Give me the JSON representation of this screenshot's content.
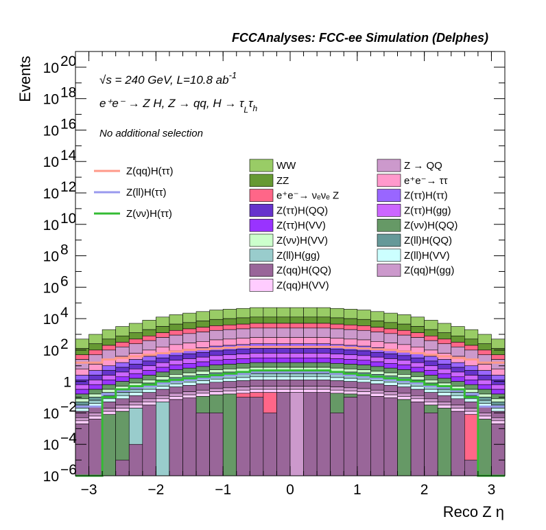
{
  "chart_data": {
    "type": "bar",
    "title": "FCCAnalyses: FCC-ee Simulation (Delphes)",
    "xlabel": "Reco Z η",
    "ylabel": "Events",
    "xlim": [
      -3.2,
      3.2
    ],
    "ylim_log10": [
      -6,
      21
    ],
    "yscale": "log",
    "x_ticks": [
      {
        "value": -3,
        "label": "−3"
      },
      {
        "value": -2,
        "label": "−2"
      },
      {
        "value": -1,
        "label": "−1"
      },
      {
        "value": 0,
        "label": "0"
      },
      {
        "value": 1,
        "label": "1"
      },
      {
        "value": 2,
        "label": "2"
      },
      {
        "value": 3,
        "label": "3"
      }
    ],
    "y_tick_exponents": [
      -6,
      -4,
      -2,
      0,
      2,
      4,
      6,
      8,
      10,
      12,
      14,
      16,
      18,
      20
    ],
    "y_tick_labels": {
      "-6": "10",
      "-4": "10",
      "-2": "10",
      "0": "1",
      "2": "10",
      "4": "10",
      "6": "10",
      "8": "10",
      "10": "10",
      "12": "10",
      "14": "10",
      "16": "10",
      "18": "10",
      "20": "10"
    },
    "y_tick_sup": {
      "-6": "−6",
      "-4": "−4",
      "-2": "−2",
      "0": "",
      "2": "2",
      "4": "4",
      "6": "6",
      "8": "8",
      "10": "10",
      "12": "12",
      "14": "14",
      "16": "16",
      "18": "18",
      "20": "20"
    },
    "annotations": {
      "line1": "√s = 240 GeV, L=10.8 ab",
      "line1_sup": "-1",
      "line2": "e⁺e⁻ → Z H, Z → qq, H → τ",
      "line2_sub1": "L",
      "line2_tau": "τ",
      "line2_sub2": "h",
      "line3": "No additional selection"
    },
    "bin_edges_start": -3.2,
    "bin_width": 0.2,
    "total_stack_log10": [
      2.7,
      3.0,
      3.3,
      3.5,
      3.7,
      3.9,
      4.1,
      4.25,
      4.35,
      4.45,
      4.55,
      4.6,
      4.65,
      4.7,
      4.7,
      4.7,
      4.7,
      4.7,
      4.7,
      4.65,
      4.6,
      4.55,
      4.45,
      4.35,
      4.25,
      4.1,
      3.9,
      3.7,
      3.5,
      3.3,
      3.0,
      2.7
    ],
    "stack_series": [
      {
        "name": "WW",
        "color": "#99cc66",
        "delta_log10": 0.6
      },
      {
        "name": "ZZ",
        "color": "#669933",
        "delta_log10": 0.4
      },
      {
        "name": "e⁺e⁻→ νₑνₑ Z",
        "color": "#ff6688",
        "delta_log10": 0.3
      },
      {
        "name": "Z → QQ",
        "color": "#cc99cc",
        "delta_log10": 0.6
      },
      {
        "name": "e⁺e⁻→ ττ",
        "color": "#ff99cc",
        "delta_log10": 0.4
      },
      {
        "name": "Z(ττ)H(ττ)",
        "color": "#9966ff",
        "delta_log10": 0.3
      },
      {
        "name": "Z(ττ)H(QQ)",
        "color": "#6633cc",
        "delta_log10": 0.3
      },
      {
        "name": "Z(ττ)H(gg)",
        "color": "#cc66ff",
        "delta_log10": 0.3
      },
      {
        "name": "Z(ττ)H(VV)",
        "color": "#9933ff",
        "delta_log10": 0.3
      },
      {
        "name": "Z(νν)H(QQ)",
        "color": "#669966",
        "delta_log10": 0.3
      },
      {
        "name": "Z(νν)H(VV)",
        "color": "#ccffcc",
        "delta_log10": 0.2
      },
      {
        "name": "Z(ll)H(QQ)",
        "color": "#669999",
        "delta_log10": 0.2
      },
      {
        "name": "Z(ll)H(gg)",
        "color": "#99cccc",
        "delta_log10": 0.2
      },
      {
        "name": "Z(ll)H(VV)",
        "color": "#ccffff",
        "delta_log10": 0.2
      },
      {
        "name": "Z(qq)H(QQ)",
        "color": "#996699",
        "delta_log10": 0.4
      },
      {
        "name": "Z(qq)H(gg)",
        "color": "#cc99cc",
        "delta_log10": 0.2
      },
      {
        "name": "Z(qq)H(VV)",
        "color": "#ffccff",
        "delta_log10": 0.2
      }
    ],
    "bottom_layers": {
      "Z(qq)H(QQ)": [
        -0.3,
        -0.3,
        -6,
        -5,
        -4,
        -1,
        -6,
        0,
        -6,
        -2,
        -2,
        -6,
        -1,
        -1,
        -2,
        0,
        -6,
        0,
        -1,
        -2,
        -1,
        -0.5,
        0,
        -1,
        -6,
        0,
        -2,
        -6,
        -6,
        -5,
        -6,
        -0.3
      ],
      "Z(νν)H(QQ)": [
        -6,
        -6,
        -1.5,
        -1.5,
        -6,
        -6,
        -6,
        -6,
        -6,
        0.5,
        0,
        -4,
        0,
        0,
        0.2,
        0.5,
        -6,
        0.5,
        -6,
        0.5,
        0.3,
        0.5,
        0,
        0.3,
        -0.5,
        0.3,
        -2,
        -4,
        -6,
        -6,
        -1.5,
        -6
      ],
      "e⁺e⁻→ νₑνₑ Z": [
        -6,
        -6,
        -6,
        -6,
        -6,
        -6,
        -6,
        -6,
        -6,
        -6,
        0,
        -6,
        -6,
        -6,
        -6,
        -6,
        -6,
        -6,
        -6,
        -6,
        -6,
        -6,
        -6,
        -6,
        -6,
        -6,
        -6,
        -6,
        0,
        -6,
        -6,
        -6
      ],
      "Z(ll)H(gg)": [
        -6,
        -6,
        -6,
        -6,
        -1.7,
        -6,
        0,
        -6,
        -6,
        -6,
        -6,
        -6,
        -6,
        -6,
        -6,
        -6,
        -6,
        -6,
        -6,
        -6,
        -6,
        -6,
        -6,
        -6,
        -6,
        -6,
        -6,
        -6,
        -6,
        -6,
        -6,
        -6
      ]
    },
    "bottom_layers_special": {
      "e⁺e⁻→ νₑνₑ Z_pink_bins": [
        6,
        7,
        12,
        13,
        14,
        15,
        22,
        23,
        29
      ],
      "Z → QQ_bin": [
        16
      ]
    },
    "line_series": [
      {
        "name": "Z(qq)H(ττ)",
        "color": "#ff9988",
        "values_log10": [
          1.2,
          1.2,
          1.4,
          1.5,
          1.6,
          1.7,
          1.8,
          1.9,
          2.0,
          2.05,
          2.1,
          2.15,
          2.2,
          2.2,
          2.2,
          2.2,
          2.2,
          2.2,
          2.2,
          2.2,
          2.15,
          2.1,
          2.05,
          2.0,
          1.9,
          1.8,
          1.7,
          1.6,
          1.5,
          1.4,
          1.2,
          1.2
        ]
      },
      {
        "name": "Z(ll)H(ττ)",
        "color": "#9999ee",
        "values_log10": [
          -1.6,
          -1.6,
          -0.8,
          -0.6,
          -0.4,
          -0.3,
          -0.1,
          0.0,
          0.1,
          0.2,
          0.3,
          0.4,
          0.5,
          0.6,
          0.6,
          0.6,
          0.6,
          0.6,
          0.6,
          0.5,
          0.4,
          0.3,
          0.2,
          0.1,
          0.0,
          -0.1,
          -0.3,
          -0.4,
          -0.6,
          -0.8,
          -1.6,
          -1.6
        ]
      },
      {
        "name": "Z(νν)H(ττ)",
        "color": "#33bb33",
        "values_log10": [
          -6,
          -6,
          -1.0,
          -0.5,
          -0.3,
          -0.2,
          0.0,
          0.1,
          0.2,
          0.3,
          0.4,
          0.5,
          0.6,
          0.7,
          0.7,
          0.7,
          0.7,
          0.7,
          0.7,
          0.6,
          0.5,
          0.4,
          0.3,
          0.2,
          0.1,
          0.0,
          -0.2,
          -0.3,
          -0.5,
          -1.0,
          -6,
          -6
        ]
      }
    ],
    "legend_lines": [
      {
        "label": "Z(qq)H(ττ)",
        "color": "#ff9988"
      },
      {
        "label": "Z(ll)H(ττ)",
        "color": "#9999ee"
      },
      {
        "label": "Z(νν)H(ττ)",
        "color": "#33bb33"
      }
    ],
    "legend_boxes_col1": [
      {
        "label": "WW",
        "color": "#99cc66"
      },
      {
        "label": "ZZ",
        "color": "#669933"
      },
      {
        "label": "e⁺e⁻→ νₑνₑ Z",
        "color": "#ff6688"
      },
      {
        "label": "Z(ττ)H(QQ)",
        "color": "#6633cc"
      },
      {
        "label": "Z(ττ)H(VV)",
        "color": "#9933ff"
      },
      {
        "label": "Z(νν)H(VV)",
        "color": "#ccffcc"
      },
      {
        "label": "Z(ll)H(gg)",
        "color": "#99cccc"
      },
      {
        "label": "Z(qq)H(QQ)",
        "color": "#996699"
      },
      {
        "label": "Z(qq)H(VV)",
        "color": "#ffccff"
      }
    ],
    "legend_boxes_col2": [
      {
        "label": "Z → QQ",
        "color": "#cc99cc"
      },
      {
        "label": "e⁺e⁻→ ττ",
        "color": "#ff99cc"
      },
      {
        "label": "Z(ττ)H(ττ)",
        "color": "#9966ff"
      },
      {
        "label": "Z(ττ)H(gg)",
        "color": "#cc66ff"
      },
      {
        "label": "Z(νν)H(QQ)",
        "color": "#669966"
      },
      {
        "label": "Z(ll)H(QQ)",
        "color": "#669999"
      },
      {
        "label": "Z(ll)H(VV)",
        "color": "#ccffff"
      },
      {
        "label": "Z(qq)H(gg)",
        "color": "#cc99cc"
      }
    ],
    "grid": false,
    "legend_placement": "top"
  }
}
